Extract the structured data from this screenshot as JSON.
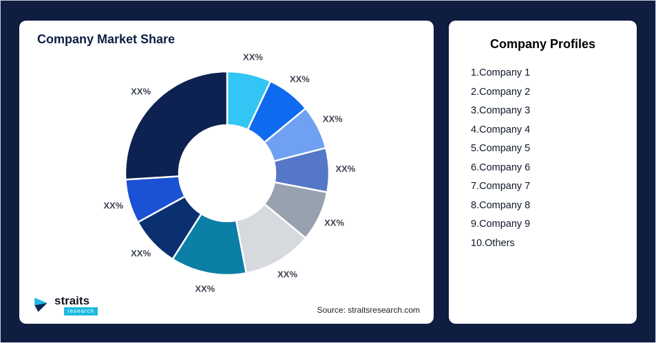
{
  "window": {
    "bg_color": "#0E1D40"
  },
  "market_share_card": {
    "title": "Company Market Share",
    "source": "Source: straitsresearch.com"
  },
  "logo": {
    "brand": "straits",
    "sub_brand": "research"
  },
  "profiles_card": {
    "title": "Company Profiles",
    "items": [
      "1.Company 1",
      "2.Company 2",
      "3.Company 3",
      "4.Company 4",
      "5.Company 5",
      "6.Company 6",
      "7.Company 7",
      "8.Company 8",
      "9.Company 9",
      "10.Others"
    ]
  },
  "chart_data": {
    "type": "pie",
    "subtype": "donut",
    "title": "Company Market Share",
    "labels": [
      "XX%",
      "XX%",
      "XX%",
      "XX%",
      "XX%",
      "XX%",
      "XX%",
      "XX%",
      "XX%",
      "XX%"
    ],
    "values": [
      7,
      7,
      7,
      7,
      8,
      11,
      12,
      8,
      7,
      26
    ],
    "colors": [
      "#33C6F4",
      "#0E6BF0",
      "#6FA0F2",
      "#5577C8",
      "#98A1B0",
      "#D6D9DE",
      "#0C7FA6",
      "#0A3070",
      "#1A51D5",
      "#0D2251"
    ],
    "inner_radius_ratio": 0.47,
    "legend": "none",
    "start_angle_deg": 0,
    "direction": "clockwise"
  }
}
